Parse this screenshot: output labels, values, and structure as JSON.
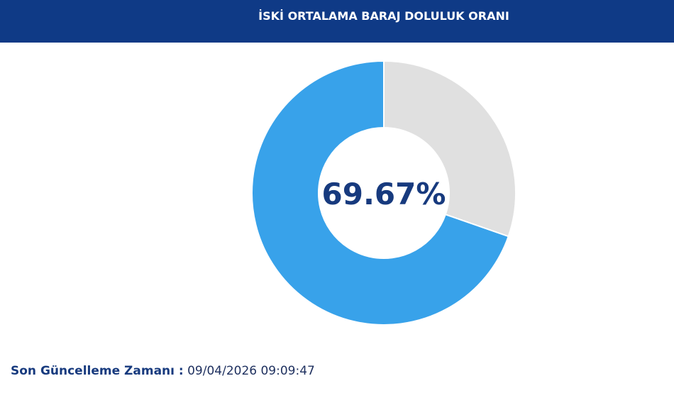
{
  "chart_data": {
    "type": "donut",
    "title": "İSKİ ORTALAMA BARAJ DOLULUK ORANI",
    "values": [
      69.67,
      30.33
    ],
    "value_labels": [
      "69.67%",
      null
    ],
    "colors": [
      "#38a2ea",
      "#e0e0e0"
    ]
  },
  "footer": {
    "label": "Son Güncelleme Zamanı :",
    "timestamp": "09/04/2026 09:09:47"
  }
}
